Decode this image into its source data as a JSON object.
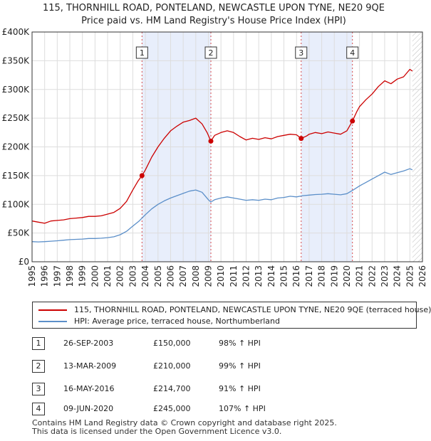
{
  "title": {
    "line1": "115, THORNHILL ROAD, PONTELAND, NEWCASTLE UPON TYNE, NE20 9QE",
    "line2": "Price paid vs. HM Land Registry's House Price Index (HPI)"
  },
  "colors": {
    "property": "#cc0000",
    "hpi": "#5b8fc9",
    "shade": "#e8eefb",
    "grid": "#dddddd"
  },
  "chart_data": {
    "type": "line",
    "xlim": [
      1995,
      2026
    ],
    "ylim": [
      0,
      400000
    ],
    "y_ticks": [
      {
        "value": 0,
        "label": "£0"
      },
      {
        "value": 50000,
        "label": "£50K"
      },
      {
        "value": 100000,
        "label": "£100K"
      },
      {
        "value": 150000,
        "label": "£150K"
      },
      {
        "value": 200000,
        "label": "£200K"
      },
      {
        "value": 250000,
        "label": "£250K"
      },
      {
        "value": 300000,
        "label": "£300K"
      },
      {
        "value": 350000,
        "label": "£350K"
      },
      {
        "value": 400000,
        "label": "£400K"
      }
    ],
    "x_ticks": [
      "1995",
      "1996",
      "1997",
      "1998",
      "1999",
      "2000",
      "2001",
      "2002",
      "2003",
      "2004",
      "2005",
      "2006",
      "2007",
      "2008",
      "2009",
      "2010",
      "2011",
      "2012",
      "2013",
      "2014",
      "2015",
      "2016",
      "2017",
      "2018",
      "2019",
      "2020",
      "2021",
      "2022",
      "2023",
      "2024",
      "2025",
      "2026"
    ],
    "shaded_ranges": [
      [
        2003.73,
        2009.2
      ],
      [
        2016.37,
        2020.44
      ]
    ],
    "future_hatch_start": 2025.2,
    "series": [
      {
        "name": "115, THORNHILL ROAD, PONTELAND, NEWCASTLE UPON TYNE, NE20 9QE (terraced house)",
        "color": "#cc0000",
        "points": [
          [
            1995.0,
            71000
          ],
          [
            1995.5,
            69000
          ],
          [
            1996.0,
            67000
          ],
          [
            1996.5,
            71000
          ],
          [
            1997.0,
            72000
          ],
          [
            1997.5,
            73000
          ],
          [
            1998.0,
            75000
          ],
          [
            1998.5,
            76000
          ],
          [
            1999.0,
            77000
          ],
          [
            1999.5,
            79000
          ],
          [
            2000.0,
            79000
          ],
          [
            2000.5,
            80000
          ],
          [
            2001.0,
            83000
          ],
          [
            2001.5,
            86000
          ],
          [
            2002.0,
            93000
          ],
          [
            2002.5,
            105000
          ],
          [
            2003.0,
            125000
          ],
          [
            2003.4,
            140000
          ],
          [
            2003.73,
            150000
          ],
          [
            2004.0,
            160000
          ],
          [
            2004.5,
            182000
          ],
          [
            2005.0,
            200000
          ],
          [
            2005.5,
            215000
          ],
          [
            2006.0,
            228000
          ],
          [
            2006.5,
            236000
          ],
          [
            2007.0,
            243000
          ],
          [
            2007.5,
            246000
          ],
          [
            2008.0,
            250000
          ],
          [
            2008.5,
            240000
          ],
          [
            2008.9,
            225000
          ],
          [
            2009.2,
            210000
          ],
          [
            2009.5,
            220000
          ],
          [
            2010.0,
            225000
          ],
          [
            2010.5,
            228000
          ],
          [
            2011.0,
            225000
          ],
          [
            2011.5,
            218000
          ],
          [
            2012.0,
            212000
          ],
          [
            2012.5,
            215000
          ],
          [
            2013.0,
            213000
          ],
          [
            2013.5,
            216000
          ],
          [
            2014.0,
            214000
          ],
          [
            2014.5,
            218000
          ],
          [
            2015.0,
            220000
          ],
          [
            2015.5,
            222000
          ],
          [
            2016.0,
            221000
          ],
          [
            2016.37,
            214700
          ],
          [
            2016.8,
            219000
          ],
          [
            2017.0,
            222000
          ],
          [
            2017.5,
            225000
          ],
          [
            2018.0,
            223000
          ],
          [
            2018.5,
            226000
          ],
          [
            2019.0,
            224000
          ],
          [
            2019.5,
            222000
          ],
          [
            2020.0,
            228000
          ],
          [
            2020.44,
            245000
          ],
          [
            2020.8,
            262000
          ],
          [
            2021.0,
            270000
          ],
          [
            2021.5,
            282000
          ],
          [
            2022.0,
            292000
          ],
          [
            2022.5,
            305000
          ],
          [
            2023.0,
            315000
          ],
          [
            2023.5,
            310000
          ],
          [
            2024.0,
            318000
          ],
          [
            2024.5,
            322000
          ],
          [
            2025.0,
            335000
          ],
          [
            2025.2,
            332000
          ]
        ]
      },
      {
        "name": "HPI: Average price, terraced house, Northumberland",
        "color": "#5b8fc9",
        "points": [
          [
            1995.0,
            35000
          ],
          [
            1995.5,
            34500
          ],
          [
            1996.0,
            35000
          ],
          [
            1996.5,
            35800
          ],
          [
            1997.0,
            36500
          ],
          [
            1997.5,
            37500
          ],
          [
            1998.0,
            38500
          ],
          [
            1998.5,
            39000
          ],
          [
            1999.0,
            39500
          ],
          [
            1999.5,
            40500
          ],
          [
            2000.0,
            40500
          ],
          [
            2000.5,
            41000
          ],
          [
            2001.0,
            42000
          ],
          [
            2001.5,
            43500
          ],
          [
            2002.0,
            47000
          ],
          [
            2002.5,
            53000
          ],
          [
            2003.0,
            62000
          ],
          [
            2003.5,
            71000
          ],
          [
            2004.0,
            82000
          ],
          [
            2004.5,
            92000
          ],
          [
            2005.0,
            100000
          ],
          [
            2005.5,
            106000
          ],
          [
            2006.0,
            111000
          ],
          [
            2006.5,
            115000
          ],
          [
            2007.0,
            119000
          ],
          [
            2007.5,
            123000
          ],
          [
            2008.0,
            125000
          ],
          [
            2008.5,
            121000
          ],
          [
            2009.0,
            108000
          ],
          [
            2009.2,
            104000
          ],
          [
            2009.5,
            108000
          ],
          [
            2010.0,
            111000
          ],
          [
            2010.5,
            113000
          ],
          [
            2011.0,
            111000
          ],
          [
            2011.5,
            109000
          ],
          [
            2012.0,
            107000
          ],
          [
            2012.5,
            108000
          ],
          [
            2013.0,
            107000
          ],
          [
            2013.5,
            109000
          ],
          [
            2014.0,
            108000
          ],
          [
            2014.5,
            111000
          ],
          [
            2015.0,
            112000
          ],
          [
            2015.5,
            114000
          ],
          [
            2016.0,
            113000
          ],
          [
            2016.5,
            115000
          ],
          [
            2017.0,
            116000
          ],
          [
            2017.5,
            117000
          ],
          [
            2018.0,
            117500
          ],
          [
            2018.5,
            118500
          ],
          [
            2019.0,
            117500
          ],
          [
            2019.5,
            116500
          ],
          [
            2020.0,
            118500
          ],
          [
            2020.5,
            125000
          ],
          [
            2021.0,
            132000
          ],
          [
            2021.5,
            138000
          ],
          [
            2022.0,
            144000
          ],
          [
            2022.5,
            150000
          ],
          [
            2023.0,
            156000
          ],
          [
            2023.5,
            152000
          ],
          [
            2024.0,
            155000
          ],
          [
            2024.5,
            158000
          ],
          [
            2025.0,
            162000
          ],
          [
            2025.2,
            160000
          ]
        ]
      }
    ],
    "sales": [
      {
        "n": "1",
        "x": 2003.73,
        "price": 150000
      },
      {
        "n": "2",
        "x": 2009.2,
        "price": 210000
      },
      {
        "n": "3",
        "x": 2016.37,
        "price": 214700
      },
      {
        "n": "4",
        "x": 2020.44,
        "price": 245000
      }
    ]
  },
  "legend": {
    "property_label": "115, THORNHILL ROAD, PONTELAND, NEWCASTLE UPON TYNE, NE20 9QE (terraced house)",
    "hpi_label": "HPI: Average price, terraced house, Northumberland"
  },
  "transactions": [
    {
      "n": "1",
      "date": "26-SEP-2003",
      "price": "£150,000",
      "hpi": "98% ↑ HPI"
    },
    {
      "n": "2",
      "date": "13-MAR-2009",
      "price": "£210,000",
      "hpi": "99% ↑ HPI"
    },
    {
      "n": "3",
      "date": "16-MAY-2016",
      "price": "£214,700",
      "hpi": "91% ↑ HPI"
    },
    {
      "n": "4",
      "date": "09-JUN-2020",
      "price": "£245,000",
      "hpi": "107% ↑ HPI"
    }
  ],
  "footer": {
    "line1": "Contains HM Land Registry data © Crown copyright and database right 2025.",
    "line2": "This data is licensed under the Open Government Licence v3.0."
  }
}
